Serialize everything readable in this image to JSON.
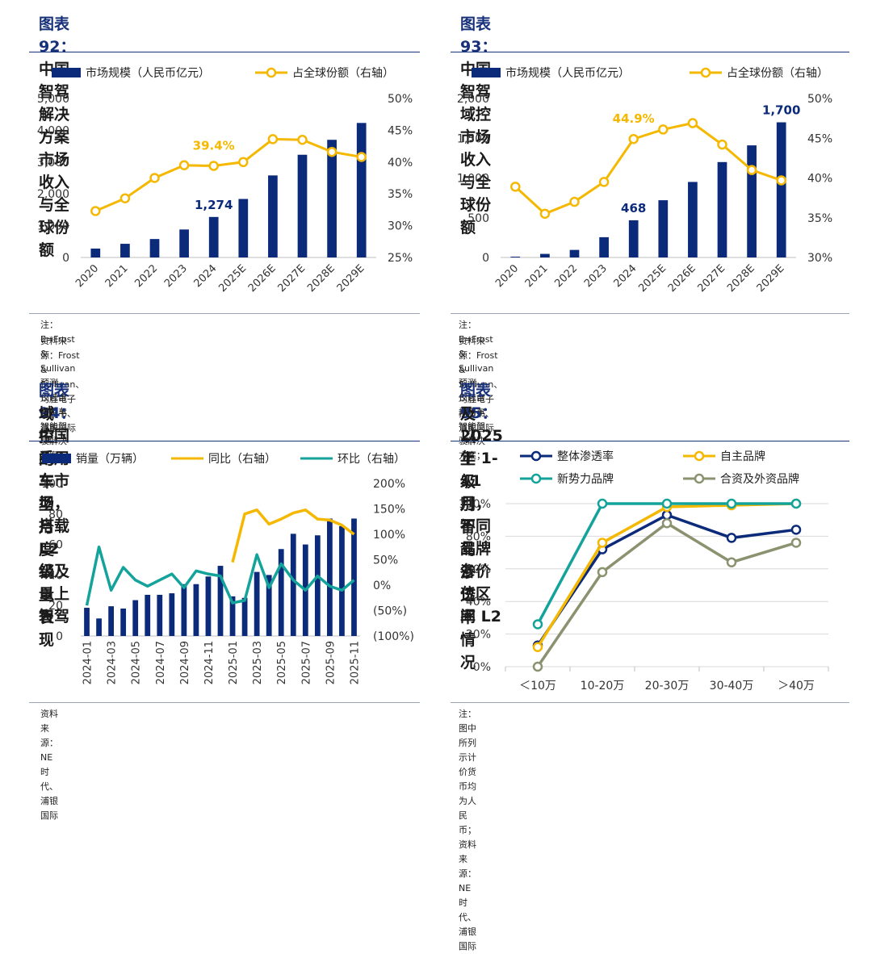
{
  "colors": {
    "navy": "#0b2a7a",
    "yellow": "#f5b800",
    "teal": "#14a39a",
    "olive": "#8a9270",
    "fignum": "#17307a"
  },
  "panels": [
    {
      "fig_label": "图表 92：",
      "title_lines": [
        "中国智驾解决方案市场收入与全球份额"
      ],
      "notes": [
        "注：E=Frost & Sullivan 预测，仅包含乘用车智能驾驶解决方案；",
        "资料来源：Frost & Sullivan、均胜电子招股书、浦银国际"
      ]
    },
    {
      "fig_label": "图表 93：",
      "title_lines": [
        "中国智驾域控市场收入与全球份额"
      ],
      "notes": [
        "注：E=Frost & Sullivan 预测，仅包含乘用车智能驾驶解决方案；",
        "资料来源：Frost & Sullivan、均胜电子招股书、浦银国际"
      ]
    },
    {
      "fig_label": "图表 94：",
      "title_lines": [
        "中国乘用车市场，搭载 L2 级及以上智驾",
        "域控的车型月度销量表现"
      ],
      "notes": [
        "资料来源：NE 时代、浦银国际"
      ]
    },
    {
      "fig_label": "图表 95：",
      "title_lines": [
        "2025 年 1-11 月，不同品牌各价位区间 L2",
        "及以上级别智驾渗透率情况"
      ],
      "notes": [
        "注：图中所列示计价货币均为人民币；资料来源：NE 时代、浦银国际"
      ]
    }
  ],
  "chart_data": [
    {
      "type": "bar",
      "categories": [
        "2020",
        "2021",
        "2022",
        "2023",
        "2024",
        "2025E",
        "2026E",
        "2027E",
        "2028E",
        "2029E"
      ],
      "series": [
        {
          "name": "市场规模（人民币亿元）",
          "kind": "bar",
          "axis": "left",
          "values": [
            280,
            430,
            580,
            880,
            1274,
            1840,
            2580,
            3230,
            3700,
            4230
          ]
        },
        {
          "name": "占全球份额（右轴）",
          "kind": "line",
          "axis": "right",
          "values": [
            32.3,
            34.3,
            37.5,
            39.5,
            39.4,
            40.0,
            43.6,
            43.5,
            41.6,
            40.8
          ]
        }
      ],
      "ylim_left": [
        0,
        5000
      ],
      "yticks_left": [
        "0",
        "1,000",
        "2,000",
        "3,000",
        "4,000",
        "5,000"
      ],
      "ylim_right": [
        25,
        50
      ],
      "yticks_right": [
        "25%",
        "30%",
        "35%",
        "40%",
        "45%",
        "50%"
      ],
      "annotations": [
        {
          "text": "1,274",
          "series": 0,
          "index": 4
        },
        {
          "text": "39.4%",
          "series": 1,
          "index": 4
        }
      ]
    },
    {
      "type": "bar",
      "categories": [
        "2020",
        "2021",
        "2022",
        "2023",
        "2024",
        "2025E",
        "2026E",
        "2027E",
        "2028E",
        "2029E"
      ],
      "series": [
        {
          "name": "市场规模（人民币亿元）",
          "kind": "bar",
          "axis": "left",
          "values": [
            10,
            45,
            95,
            255,
            468,
            720,
            950,
            1200,
            1410,
            1700
          ]
        },
        {
          "name": "占全球份额（右轴）",
          "kind": "line",
          "axis": "right",
          "values": [
            38.9,
            35.5,
            37.0,
            39.5,
            44.9,
            46.1,
            46.9,
            44.2,
            41.0,
            39.7
          ]
        }
      ],
      "ylim_left": [
        0,
        2000
      ],
      "yticks_left": [
        "0",
        "500",
        "1,000",
        "1,500",
        "2,000"
      ],
      "ylim_right": [
        30,
        50
      ],
      "yticks_right": [
        "30%",
        "35%",
        "40%",
        "45%",
        "50%"
      ],
      "annotations": [
        {
          "text": "468",
          "series": 0,
          "index": 4
        },
        {
          "text": "1,700",
          "series": 0,
          "index": 9
        },
        {
          "text": "44.9%",
          "series": 1,
          "index": 4
        }
      ]
    },
    {
      "type": "bar",
      "categories": [
        "2024-01",
        "2024-02",
        "2024-03",
        "2024-04",
        "2024-05",
        "2024-06",
        "2024-07",
        "2024-08",
        "2024-09",
        "2024-10",
        "2024-11",
        "2024-12",
        "2025-01",
        "2025-02",
        "2025-03",
        "2025-04",
        "2025-05",
        "2025-06",
        "2025-07",
        "2025-08",
        "2025-09",
        "2025-10",
        "2025-11"
      ],
      "tick_labels": [
        "2024-01",
        "2024-03",
        "2024-05",
        "2024-07",
        "2024-09",
        "2024-11",
        "2025-01",
        "2025-03",
        "2025-05",
        "2025-07",
        "2025-09",
        "2025-11"
      ],
      "series": [
        {
          "name": "销量（万辆）",
          "kind": "bar",
          "axis": "left",
          "values": [
            18.5,
            11.5,
            19.5,
            18,
            23.5,
            27,
            27,
            28,
            34,
            34,
            39,
            46,
            26,
            25,
            42,
            40,
            57,
            67,
            60,
            66,
            77,
            72,
            77
          ]
        },
        {
          "name": "同比（右轴）",
          "kind": "line",
          "axis": "right",
          "values": [
            null,
            null,
            null,
            null,
            null,
            null,
            null,
            null,
            null,
            null,
            null,
            null,
            45,
            140,
            148,
            120,
            130,
            142,
            148,
            130,
            128,
            118,
            100
          ]
        },
        {
          "name": "环比（右轴）",
          "kind": "line",
          "axis": "right",
          "values": [
            -40,
            75,
            -10,
            35,
            10,
            -2,
            10,
            22,
            -5,
            28,
            22,
            18,
            -35,
            -30,
            60,
            -5,
            42,
            10,
            -10,
            18,
            -2,
            -10,
            10
          ]
        }
      ],
      "ylim_left": [
        0,
        100
      ],
      "yticks_left": [
        "0",
        "20",
        "40",
        "60",
        "80",
        "100"
      ],
      "ylim_right": [
        -100,
        200
      ],
      "yticks_right": [
        "(100%)",
        "(50%)",
        "0%",
        "50%",
        "100%",
        "150%",
        "200%"
      ]
    },
    {
      "type": "line",
      "categories": [
        "＜10万",
        "10-20万",
        "20-30万",
        "30-40万",
        "＞40万"
      ],
      "series": [
        {
          "name": "整体渗透率",
          "values": [
            13,
            72,
            93,
            79,
            84
          ]
        },
        {
          "name": "自主品牌",
          "values": [
            12,
            76,
            98,
            99,
            100
          ]
        },
        {
          "name": "新势力品牌",
          "values": [
            26,
            100,
            100,
            100,
            100
          ]
        },
        {
          "name": "合资及外资品牌",
          "values": [
            0,
            58,
            88,
            64,
            76
          ]
        }
      ],
      "ylim": [
        0,
        100
      ],
      "yticks": [
        "0%",
        "20%",
        "40%",
        "60%",
        "80%",
        "100%"
      ]
    }
  ]
}
